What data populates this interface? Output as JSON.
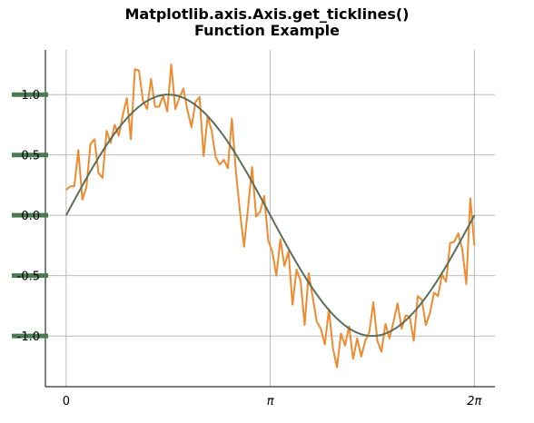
{
  "chart_data": {
    "type": "line",
    "title": [
      "Matplotlib.axis.Axis.get_ticklines()",
      "Function Example"
    ],
    "xlabel": "",
    "ylabel": "",
    "xlim": [
      -0.32,
      6.6
    ],
    "ylim": [
      -1.42,
      1.37
    ],
    "grid": true,
    "x_ticks": [
      {
        "value": 0,
        "label": "0"
      },
      {
        "value": 3.14159,
        "label": "π"
      },
      {
        "value": 6.28319,
        "label": "2π"
      }
    ],
    "y_ticks": [
      {
        "value": 1.0,
        "label": "1.0"
      },
      {
        "value": 0.5,
        "label": "0.5"
      },
      {
        "value": 0.0,
        "label": "0.0"
      },
      {
        "value": -0.5,
        "label": "-0.5"
      },
      {
        "value": -1.0,
        "label": "-1.0"
      }
    ],
    "series": [
      {
        "color": "#ef8a2f",
        "x_range": [
          0,
          6.28319
        ],
        "values": [
          0.21,
          0.24,
          0.24,
          0.54,
          0.13,
          0.23,
          0.59,
          0.63,
          0.35,
          0.31,
          0.7,
          0.6,
          0.75,
          0.66,
          0.83,
          0.97,
          0.63,
          1.21,
          1.2,
          0.95,
          0.88,
          1.13,
          0.9,
          0.9,
          0.99,
          0.86,
          1.25,
          0.88,
          0.97,
          1.05,
          0.87,
          0.73,
          0.94,
          0.98,
          0.49,
          0.82,
          0.7,
          0.48,
          0.42,
          0.46,
          0.39,
          0.8,
          0.36,
          0.03,
          -0.26,
          0.06,
          0.4,
          -0.01,
          0.03,
          0.16,
          -0.21,
          -0.3,
          -0.5,
          -0.2,
          -0.42,
          -0.3,
          -0.74,
          -0.45,
          -0.54,
          -0.91,
          -0.48,
          -0.68,
          -0.88,
          -0.94,
          -1.07,
          -0.78,
          -1.1,
          -1.26,
          -0.98,
          -1.08,
          -0.92,
          -1.19,
          -1.02,
          -1.17,
          -1.04,
          -0.97,
          -0.72,
          -1.04,
          -1.13,
          -0.9,
          -1.02,
          -0.88,
          -0.73,
          -0.94,
          -0.83,
          -0.84,
          -1.04,
          -0.67,
          -0.7,
          -0.91,
          -0.81,
          -0.64,
          -0.67,
          -0.49,
          -0.55,
          -0.23,
          -0.22,
          -0.15,
          -0.28,
          -0.57,
          0.14,
          -0.25
        ]
      },
      {
        "color": "#5a6e5a",
        "function": "sin",
        "x_range": [
          0,
          6.28319
        ],
        "points": 120
      }
    ]
  }
}
